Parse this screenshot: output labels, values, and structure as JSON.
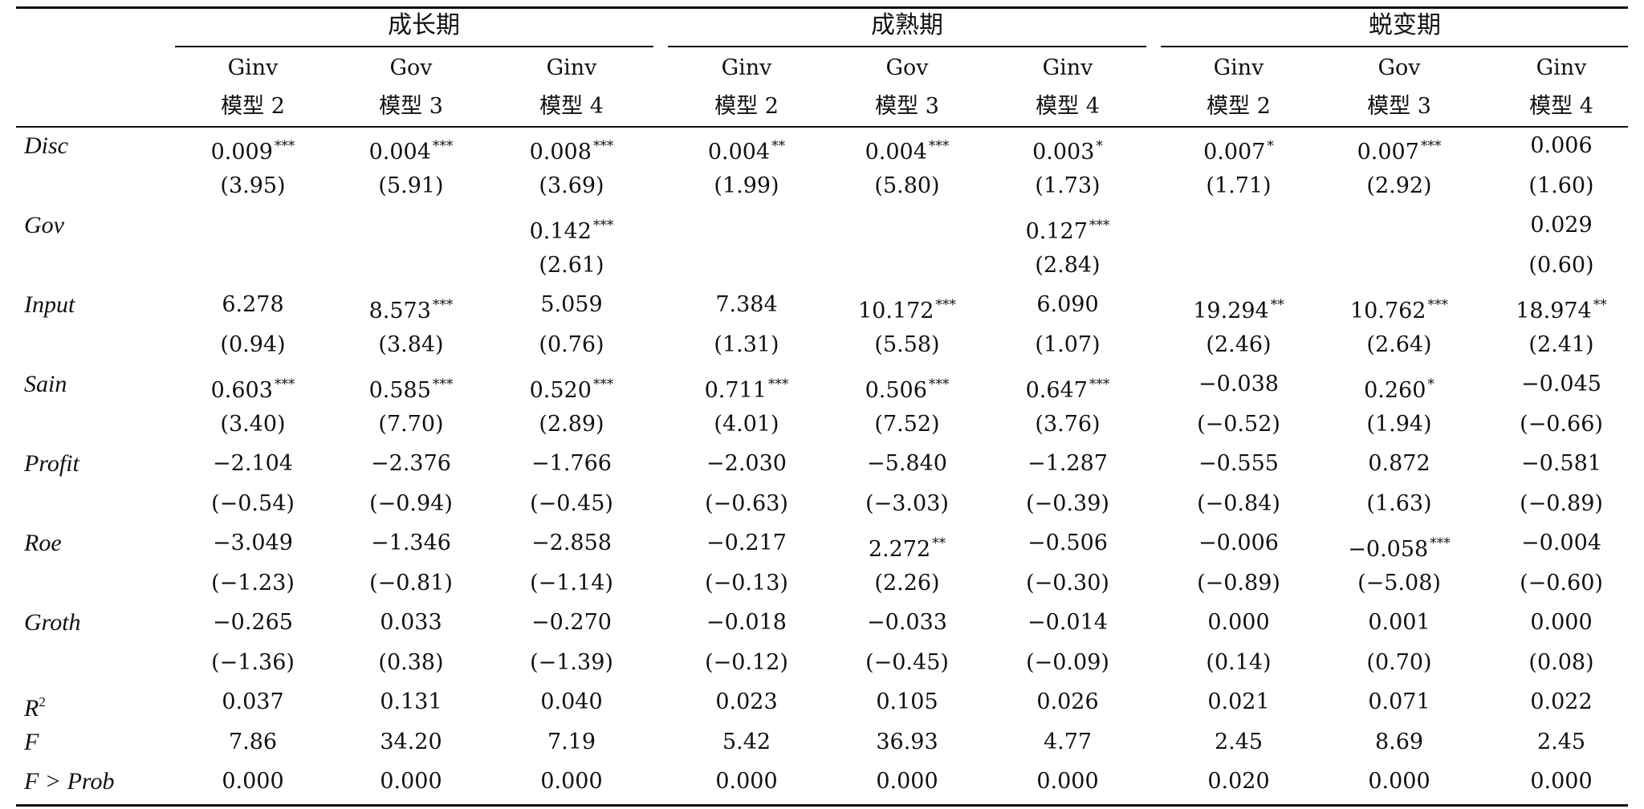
{
  "groups": [
    "成长期",
    "成熟期",
    "蜕变期"
  ],
  "dep_vars": [
    "Ginv",
    "Gov",
    "Ginv",
    "Ginv",
    "Gov",
    "Ginv",
    "Ginv",
    "Gov",
    "Ginv"
  ],
  "models": [
    "模型 2",
    "模型 3",
    "模型 4",
    "模型 2",
    "模型 3",
    "模型 4",
    "模型 2",
    "模型 3",
    "模型 4"
  ],
  "rows": [
    {
      "label": "Disc",
      "values": [
        {
          "v": "0.009",
          "s": "***"
        },
        {
          "v": "0.004",
          "s": "***"
        },
        {
          "v": "0.008",
          "s": "***"
        },
        {
          "v": "0.004",
          "s": "**"
        },
        {
          "v": "0.004",
          "s": "***"
        },
        {
          "v": "0.003",
          "s": "*"
        },
        {
          "v": "0.007",
          "s": "*"
        },
        {
          "v": "0.007",
          "s": "***"
        },
        {
          "v": "0.006",
          "s": ""
        }
      ]
    },
    {
      "label": "",
      "values": [
        {
          "v": "(3.95)"
        },
        {
          "v": "(5.91)"
        },
        {
          "v": "(3.69)"
        },
        {
          "v": "(1.99)"
        },
        {
          "v": "(5.80)"
        },
        {
          "v": "(1.73)"
        },
        {
          "v": "(1.71)"
        },
        {
          "v": "(2.92)"
        },
        {
          "v": "(1.60)"
        }
      ]
    },
    {
      "label": "Gov",
      "values": [
        {
          "v": ""
        },
        {
          "v": ""
        },
        {
          "v": "0.142",
          "s": "***"
        },
        {
          "v": ""
        },
        {
          "v": ""
        },
        {
          "v": "0.127",
          "s": "***"
        },
        {
          "v": ""
        },
        {
          "v": ""
        },
        {
          "v": "0.029"
        }
      ]
    },
    {
      "label": "",
      "values": [
        {
          "v": ""
        },
        {
          "v": ""
        },
        {
          "v": "(2.61)"
        },
        {
          "v": ""
        },
        {
          "v": ""
        },
        {
          "v": "(2.84)"
        },
        {
          "v": ""
        },
        {
          "v": ""
        },
        {
          "v": "(0.60)"
        }
      ]
    },
    {
      "label": "Input",
      "values": [
        {
          "v": "6.278"
        },
        {
          "v": "8.573",
          "s": "***"
        },
        {
          "v": "5.059"
        },
        {
          "v": "7.384"
        },
        {
          "v": "10.172",
          "s": "***"
        },
        {
          "v": "6.090"
        },
        {
          "v": "19.294",
          "s": "**"
        },
        {
          "v": "10.762",
          "s": "***"
        },
        {
          "v": "18.974",
          "s": "**"
        }
      ]
    },
    {
      "label": "",
      "values": [
        {
          "v": "(0.94)"
        },
        {
          "v": "(3.84)"
        },
        {
          "v": "(0.76)"
        },
        {
          "v": "(1.31)"
        },
        {
          "v": "(5.58)"
        },
        {
          "v": "(1.07)"
        },
        {
          "v": "(2.46)"
        },
        {
          "v": "(2.64)"
        },
        {
          "v": "(2.41)"
        }
      ]
    },
    {
      "label": "Sain",
      "values": [
        {
          "v": "0.603",
          "s": "***"
        },
        {
          "v": "0.585",
          "s": "***"
        },
        {
          "v": "0.520",
          "s": "***"
        },
        {
          "v": "0.711",
          "s": "***"
        },
        {
          "v": "0.506",
          "s": "***"
        },
        {
          "v": "0.647",
          "s": "***"
        },
        {
          "v": "−0.038"
        },
        {
          "v": "0.260",
          "s": "*"
        },
        {
          "v": "−0.045"
        }
      ]
    },
    {
      "label": "",
      "values": [
        {
          "v": "(3.40)"
        },
        {
          "v": "(7.70)"
        },
        {
          "v": "(2.89)"
        },
        {
          "v": "(4.01)"
        },
        {
          "v": "(7.52)"
        },
        {
          "v": "(3.76)"
        },
        {
          "v": "(−0.52)"
        },
        {
          "v": "(1.94)"
        },
        {
          "v": "(−0.66)"
        }
      ]
    },
    {
      "label": "Profit",
      "values": [
        {
          "v": "−2.104"
        },
        {
          "v": "−2.376"
        },
        {
          "v": "−1.766"
        },
        {
          "v": "−2.030"
        },
        {
          "v": "−5.840"
        },
        {
          "v": "−1.287"
        },
        {
          "v": "−0.555"
        },
        {
          "v": "0.872"
        },
        {
          "v": "−0.581"
        }
      ]
    },
    {
      "label": "",
      "values": [
        {
          "v": "(−0.54)"
        },
        {
          "v": "(−0.94)"
        },
        {
          "v": "(−0.45)"
        },
        {
          "v": "(−0.63)"
        },
        {
          "v": "(−3.03)"
        },
        {
          "v": "(−0.39)"
        },
        {
          "v": "(−0.84)"
        },
        {
          "v": "(1.63)"
        },
        {
          "v": "(−0.89)"
        }
      ]
    },
    {
      "label": "Roe",
      "values": [
        {
          "v": "−3.049"
        },
        {
          "v": "−1.346"
        },
        {
          "v": "−2.858"
        },
        {
          "v": "−0.217"
        },
        {
          "v": "2.272",
          "s": "**"
        },
        {
          "v": "−0.506"
        },
        {
          "v": "−0.006"
        },
        {
          "v": "−0.058",
          "s": "***"
        },
        {
          "v": "−0.004"
        }
      ]
    },
    {
      "label": "",
      "values": [
        {
          "v": "(−1.23)"
        },
        {
          "v": "(−0.81)"
        },
        {
          "v": "(−1.14)"
        },
        {
          "v": "(−0.13)"
        },
        {
          "v": "(2.26)"
        },
        {
          "v": "(−0.30)"
        },
        {
          "v": "(−0.89)"
        },
        {
          "v": "(−5.08)"
        },
        {
          "v": "(−0.60)"
        }
      ]
    },
    {
      "label": "Groth",
      "values": [
        {
          "v": "−0.265"
        },
        {
          "v": "0.033"
        },
        {
          "v": "−0.270"
        },
        {
          "v": "−0.018"
        },
        {
          "v": "−0.033"
        },
        {
          "v": "−0.014"
        },
        {
          "v": "0.000"
        },
        {
          "v": "0.001"
        },
        {
          "v": "0.000"
        }
      ]
    },
    {
      "label": "",
      "values": [
        {
          "v": "(−1.36)"
        },
        {
          "v": "(0.38)"
        },
        {
          "v": "(−1.39)"
        },
        {
          "v": "(−0.12)"
        },
        {
          "v": "(−0.45)"
        },
        {
          "v": "(−0.09)"
        },
        {
          "v": "(0.14)"
        },
        {
          "v": "(0.70)"
        },
        {
          "v": "(0.08)"
        }
      ]
    },
    {
      "label": "R",
      "label_sup": "2",
      "values": [
        {
          "v": "0.037"
        },
        {
          "v": "0.131"
        },
        {
          "v": "0.040"
        },
        {
          "v": "0.023"
        },
        {
          "v": "0.105"
        },
        {
          "v": "0.026"
        },
        {
          "v": "0.021"
        },
        {
          "v": "0.071"
        },
        {
          "v": "0.022"
        }
      ]
    },
    {
      "label": "F",
      "values": [
        {
          "v": "7.86"
        },
        {
          "v": "34.20"
        },
        {
          "v": "7.19"
        },
        {
          "v": "5.42"
        },
        {
          "v": "36.93"
        },
        {
          "v": "4.77"
        },
        {
          "v": "2.45"
        },
        {
          "v": "8.69"
        },
        {
          "v": "2.45"
        }
      ]
    },
    {
      "label": "F > Prob",
      "values": [
        {
          "v": "0.000"
        },
        {
          "v": "0.000"
        },
        {
          "v": "0.000"
        },
        {
          "v": "0.000"
        },
        {
          "v": "0.000"
        },
        {
          "v": "0.000"
        },
        {
          "v": "0.020"
        },
        {
          "v": "0.000"
        },
        {
          "v": "0.000"
        }
      ]
    }
  ]
}
